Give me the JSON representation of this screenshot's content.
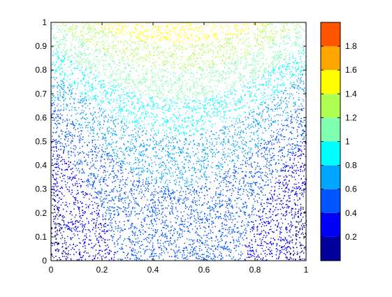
{
  "chart_data": {
    "type": "scatter",
    "title": "",
    "xlabel": "",
    "ylabel": "",
    "xlim": [
      0,
      1
    ],
    "ylim": [
      0,
      1
    ],
    "grid": false,
    "x_ticks": [
      "0",
      "0.2",
      "0.4",
      "0.6",
      "0.8",
      "1"
    ],
    "x_tick_values": [
      0,
      0.2,
      0.4,
      0.6,
      0.8,
      1
    ],
    "y_ticks": [
      "0",
      "0.1",
      "0.2",
      "0.3",
      "0.4",
      "0.5",
      "0.6",
      "0.7",
      "0.8",
      "0.9",
      "1"
    ],
    "y_tick_values": [
      0,
      0.1,
      0.2,
      0.3,
      0.4,
      0.5,
      0.6,
      0.7,
      0.8,
      0.9,
      1
    ],
    "field": "f(x,y) = 2x(1-x) + y^2 + 0.1*((2x-1)^2+y^2)",
    "colorbar": {
      "range": [
        0,
        2
      ],
      "levels": [
        0,
        0.2,
        0.4,
        0.6,
        0.8,
        1,
        1.2,
        1.4,
        1.6,
        1.8,
        2
      ],
      "tick_labels": [
        "0.2",
        "0.4",
        "0.6",
        "0.8",
        "1",
        "1.2",
        "1.4",
        "1.6",
        "1.8"
      ],
      "tick_values": [
        0.2,
        0.4,
        0.6,
        0.8,
        1,
        1.2,
        1.4,
        1.6,
        1.8
      ],
      "colors": [
        "#00009a",
        "#0000f5",
        "#0055ff",
        "#00a5ff",
        "#00ffff",
        "#7fffaf",
        "#afff50",
        "#ffff00",
        "#ffa500",
        "#ff5500"
      ]
    }
  }
}
